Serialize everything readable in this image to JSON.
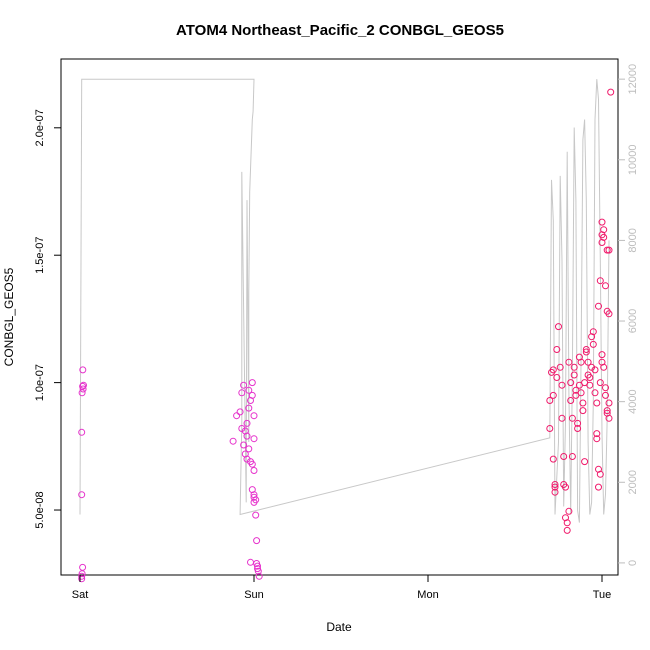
{
  "chart_data": {
    "type": "scatter",
    "title": "ATOM4 Northeast_Pacific_2 CONBGL_GEOS5",
    "xlabel": "Date",
    "ylabel": "CONBGL_GEOS5",
    "x_ticks": [
      "Sat",
      "Sun",
      "Mon",
      "Tue"
    ],
    "x_range_days": [
      0,
      3
    ],
    "y_left_ticks": [
      "5.0e-08",
      "1.0e-07",
      "1.5e-07",
      "2.0e-07"
    ],
    "y_left_tick_values": [
      5e-08,
      1e-07,
      1.5e-07,
      2e-07
    ],
    "ylim_left": [
      2.45e-08,
      2.27e-07
    ],
    "y_right_ticks": [
      "0",
      "2000",
      "4000",
      "6000",
      "8000",
      "10000",
      "12000"
    ],
    "y_right_tick_values": [
      0,
      2000,
      4000,
      6000,
      8000,
      10000,
      12000
    ],
    "ylim_right": [
      -300,
      12500
    ],
    "grid": false,
    "legend": "none",
    "colors": {
      "points_early": "#e633cc",
      "points_late": "#f01a6b",
      "altitude_line": "#c8c8c8"
    },
    "series": [
      {
        "kind": "points",
        "points": [
          [
            0.01,
            2.3e-08
          ],
          [
            0.01,
            2.4e-08
          ],
          [
            0.012,
            2.5e-08
          ],
          [
            0.015,
            2.75e-08
          ],
          [
            0.01,
            5.6e-08
          ],
          [
            0.01,
            8.05e-08
          ],
          [
            0.012,
            9.6e-08
          ],
          [
            0.015,
            9.85e-08
          ],
          [
            0.018,
            9.75e-08
          ],
          [
            0.02,
            9.9e-08
          ],
          [
            0.016,
            1.05e-07
          ],
          [
            0.88,
            7.7e-08
          ],
          [
            0.9,
            8.7e-08
          ],
          [
            0.92,
            8.85e-08
          ],
          [
            0.93,
            9.6e-08
          ],
          [
            0.94,
            9.9e-08
          ],
          [
            0.95,
            8.1e-08
          ],
          [
            0.96,
            7.9e-08
          ],
          [
            0.97,
            9e-08
          ],
          [
            0.94,
            7.55e-08
          ],
          [
            0.95,
            7.2e-08
          ],
          [
            0.96,
            7e-08
          ],
          [
            0.97,
            7.4e-08
          ],
          [
            0.98,
            6.9e-08
          ],
          [
            0.99,
            6.8e-08
          ],
          [
            0.98,
            9.3e-08
          ],
          [
            0.99,
            9.5e-08
          ],
          [
            0.97,
            9.7e-08
          ],
          [
            0.99,
            1e-07
          ],
          [
            1.0,
            7.8e-08
          ],
          [
            1.0,
            6.55e-08
          ],
          [
            0.99,
            5.8e-08
          ],
          [
            1.0,
            5.5e-08
          ],
          [
            1.0,
            5.3e-08
          ],
          [
            1.01,
            4.8e-08
          ],
          [
            1.0,
            5.6e-08
          ],
          [
            1.01,
            5.4e-08
          ],
          [
            1.015,
            3.8e-08
          ],
          [
            1.015,
            2.9e-08
          ],
          [
            1.02,
            2.8e-08
          ],
          [
            1.02,
            2.7e-08
          ],
          [
            1.025,
            2.6e-08
          ],
          [
            1.03,
            2.4e-08
          ],
          [
            0.98,
            2.95e-08
          ],
          [
            1.0,
            8.7e-08
          ],
          [
            0.93,
            8.2e-08
          ],
          [
            0.96,
            8.4e-08
          ],
          [
            2.7,
            8.2e-08
          ],
          [
            2.7,
            9.3e-08
          ],
          [
            2.71,
            1.04e-07
          ],
          [
            2.72,
            1.05e-07
          ],
          [
            2.72,
            9.5e-08
          ],
          [
            2.73,
            6e-08
          ],
          [
            2.73,
            5.9e-08
          ],
          [
            2.73,
            5.7e-08
          ],
          [
            2.72,
            7e-08
          ],
          [
            2.74,
            1.02e-07
          ],
          [
            2.74,
            1.13e-07
          ],
          [
            2.75,
            1.22e-07
          ],
          [
            2.76,
            1.06e-07
          ],
          [
            2.77,
            9.9e-08
          ],
          [
            2.77,
            8.6e-08
          ],
          [
            2.78,
            7.1e-08
          ],
          [
            2.78,
            6e-08
          ],
          [
            2.79,
            5.9e-08
          ],
          [
            2.79,
            4.7e-08
          ],
          [
            2.8,
            4.5e-08
          ],
          [
            2.8,
            4.2e-08
          ],
          [
            2.81,
            4.95e-08
          ],
          [
            2.81,
            1.08e-07
          ],
          [
            2.82,
            1e-07
          ],
          [
            2.82,
            9.3e-08
          ],
          [
            2.83,
            8.6e-08
          ],
          [
            2.83,
            7.1e-08
          ],
          [
            2.84,
            1.03e-07
          ],
          [
            2.84,
            1.06e-07
          ],
          [
            2.85,
            9.7e-08
          ],
          [
            2.85,
            9.5e-08
          ],
          [
            2.86,
            8.4e-08
          ],
          [
            2.86,
            8.2e-08
          ],
          [
            2.87,
            9.9e-08
          ],
          [
            2.87,
            1.1e-07
          ],
          [
            2.88,
            1.08e-07
          ],
          [
            2.88,
            9.6e-08
          ],
          [
            2.89,
            9.2e-08
          ],
          [
            2.89,
            8.9e-08
          ],
          [
            2.9,
            6.9e-08
          ],
          [
            2.9,
            1e-07
          ],
          [
            2.91,
            1.13e-07
          ],
          [
            2.91,
            1.12e-07
          ],
          [
            2.92,
            1.08e-07
          ],
          [
            2.92,
            1.03e-07
          ],
          [
            2.93,
            9.9e-08
          ],
          [
            2.93,
            1.02e-07
          ],
          [
            2.94,
            1.06e-07
          ],
          [
            2.94,
            1.18e-07
          ],
          [
            2.95,
            1.2e-07
          ],
          [
            2.95,
            1.15e-07
          ],
          [
            2.96,
            1.05e-07
          ],
          [
            2.96,
            9.6e-08
          ],
          [
            2.97,
            9.2e-08
          ],
          [
            2.97,
            8e-08
          ],
          [
            2.97,
            7.8e-08
          ],
          [
            2.98,
            6.6e-08
          ],
          [
            2.98,
            5.9e-08
          ],
          [
            2.99,
            6.4e-08
          ],
          [
            2.99,
            1e-07
          ],
          [
            3.0,
            1.08e-07
          ],
          [
            3.0,
            1.11e-07
          ],
          [
            3.01,
            1.06e-07
          ],
          [
            3.02,
            9.8e-08
          ],
          [
            3.02,
            9.5e-08
          ],
          [
            3.03,
            8.9e-08
          ],
          [
            3.03,
            8.8e-08
          ],
          [
            3.04,
            8.6e-08
          ],
          [
            3.04,
            9.2e-08
          ],
          [
            2.98,
            1.3e-07
          ],
          [
            2.99,
            1.4e-07
          ],
          [
            3.0,
            1.55e-07
          ],
          [
            3.0,
            1.58e-07
          ],
          [
            3.0,
            1.63e-07
          ],
          [
            3.01,
            1.6e-07
          ],
          [
            3.01,
            1.57e-07
          ],
          [
            3.02,
            1.38e-07
          ],
          [
            3.03,
            1.28e-07
          ],
          [
            3.04,
            1.27e-07
          ],
          [
            3.04,
            1.52e-07
          ],
          [
            3.03,
            1.52e-07
          ],
          [
            3.05,
            2.14e-07
          ]
        ]
      },
      {
        "kind": "line",
        "name": "",
        "axis": "right",
        "points": [
          [
            0.0,
            1200
          ],
          [
            0.01,
            12000
          ],
          [
            1.0,
            12000
          ],
          [
            0.995,
            11200
          ],
          [
            0.99,
            11000
          ],
          [
            0.975,
            9200
          ],
          [
            0.97,
            6700
          ],
          [
            0.97,
            3000
          ],
          [
            0.96,
            9000
          ],
          [
            0.955,
            1500
          ],
          [
            0.93,
            9700
          ],
          [
            0.93,
            3500
          ],
          [
            0.92,
            1200
          ],
          [
            2.7,
            3100
          ],
          [
            2.71,
            9500
          ],
          [
            2.72,
            8500
          ],
          [
            2.73,
            1200
          ],
          [
            2.75,
            3000
          ],
          [
            2.76,
            9600
          ],
          [
            2.77,
            7500
          ],
          [
            2.78,
            1400
          ],
          [
            2.79,
            3500
          ],
          [
            2.8,
            10200
          ],
          [
            2.81,
            4200
          ],
          [
            2.82,
            1200
          ],
          [
            2.83,
            4800
          ],
          [
            2.84,
            10800
          ],
          [
            2.85,
            9000
          ],
          [
            2.86,
            1300
          ],
          [
            2.87,
            1000
          ],
          [
            2.88,
            5200
          ],
          [
            2.89,
            10500
          ],
          [
            2.9,
            11000
          ],
          [
            2.91,
            9000
          ],
          [
            2.92,
            3000
          ],
          [
            2.93,
            1200
          ],
          [
            2.94,
            1500
          ],
          [
            2.95,
            4000
          ],
          [
            2.96,
            11000
          ],
          [
            2.97,
            12000
          ],
          [
            2.98,
            11500
          ],
          [
            2.99,
            7500
          ],
          [
            3.0,
            3200
          ],
          [
            3.01,
            1200
          ],
          [
            3.02,
            1700
          ],
          [
            3.03,
            3600
          ],
          [
            3.04,
            8000
          ]
        ]
      }
    ]
  }
}
